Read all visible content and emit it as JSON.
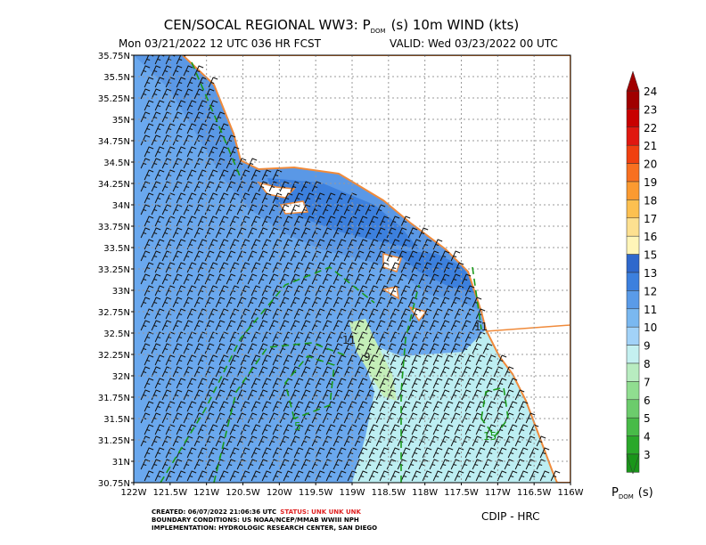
{
  "header": {
    "title_main": "CEN/SOCAL REGIONAL WW3: P",
    "title_sub": "DOM",
    "title_rest": "(s) 10m WIND (kts)",
    "subtitle_left": "Mon 03/21/2022 12 UTC 036 HR FCST",
    "subtitle_right": "VALID: Wed 03/23/2022 00 UTC"
  },
  "map": {
    "lat_labels": [
      "35.75N",
      "35.5N",
      "35.25N",
      "35N",
      "34.75N",
      "34.5N",
      "34.25N",
      "34N",
      "33.75N",
      "33.5N",
      "33.25N",
      "33N",
      "32.75N",
      "32.5N",
      "32.25N",
      "32N",
      "31.75N",
      "31.5N",
      "31.25N",
      "31N",
      "30.75N"
    ],
    "lon_labels": [
      "122W",
      "121.5W",
      "121W",
      "120.5W",
      "120W",
      "119.5W",
      "119W",
      "118.5W",
      "118W",
      "117.5W",
      "117W",
      "116.5W",
      "116W"
    ],
    "contour_labels": [
      "11",
      "9",
      "5",
      "15",
      "11"
    ]
  },
  "colorbar": {
    "levels": [
      24,
      23,
      22,
      21,
      20,
      19,
      18,
      17,
      16,
      15,
      13,
      12,
      11,
      10,
      9,
      8,
      7,
      6,
      5,
      4,
      3
    ],
    "colors": [
      "#a00000",
      "#c80000",
      "#e01810",
      "#f04010",
      "#f87020",
      "#fb9a30",
      "#fcc050",
      "#fde090",
      "#fff5b8",
      "#2f68cc",
      "#3c80de",
      "#5a9be8",
      "#7ab8f0",
      "#a2d2f8",
      "#c4f0f0",
      "#b8ecc0",
      "#90de90",
      "#6ccc6c",
      "#48bb48",
      "#2aa82a",
      "#1a961a"
    ],
    "label_main": "P",
    "label_sub": "DOM",
    "label_rest": "(s)"
  },
  "footer": {
    "created": "CREATED: 06/07/2022 21:06:36 UTC",
    "status": "STATUS: UNK UNK UNK",
    "boundary": "BOUNDARY CONDITIONS: US NOAA/NCEP/MMAB WWIII NPH",
    "implementation": "IMPLEMENTATION: HYDROLOGIC RESEARCH CENTER, SAN DIEGO",
    "credit": "CDIP - HRC"
  }
}
